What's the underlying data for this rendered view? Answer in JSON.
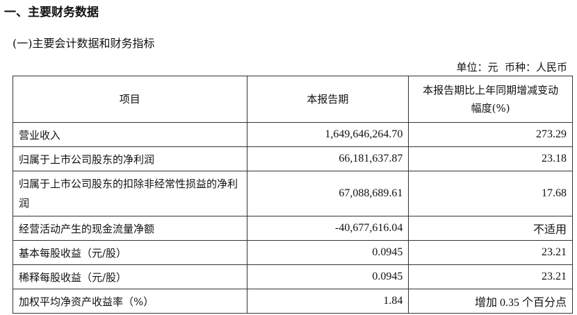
{
  "section_title": "一、主要财务数据",
  "subsection_title": "(一)主要会计数据和财务指标",
  "unit_note": "单位：元  币种：人民币",
  "table": {
    "headers": [
      "项目",
      "本报告期",
      "本报告期比上年同期增减变动幅度(%)"
    ],
    "rows": [
      {
        "item": "营业收入",
        "current": "1,649,646,264.70",
        "change": "273.29"
      },
      {
        "item": "归属于上市公司股东的净利润",
        "current": "66,181,637.87",
        "change": "23.18"
      },
      {
        "item": "归属于上市公司股东的扣除非经常性损益的净利润",
        "current": "67,088,689.61",
        "change": "17.68"
      },
      {
        "item": "经营活动产生的现金流量净额",
        "current": "-40,677,616.04",
        "change": "不适用"
      },
      {
        "item": "基本每股收益（元/股）",
        "current": "0.0945",
        "change": "23.21"
      },
      {
        "item": "稀释每股收益（元/股）",
        "current": "0.0945",
        "change": "23.21"
      },
      {
        "item": "加权平均净资产收益率（%）",
        "current": "1.84",
        "change": "增加 0.35 个百分点"
      }
    ]
  }
}
